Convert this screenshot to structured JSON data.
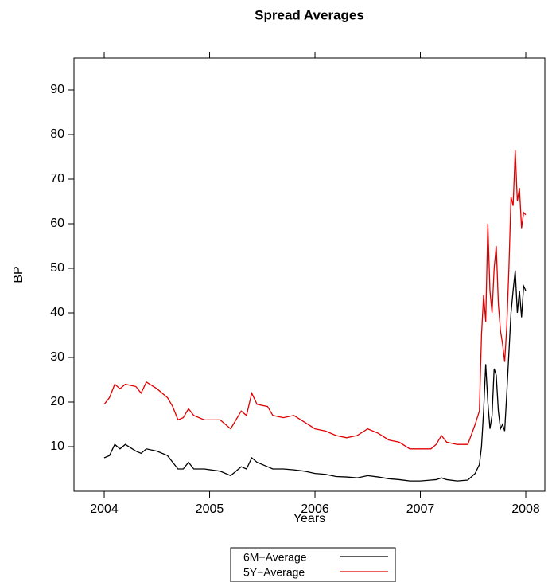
{
  "chart_data": {
    "type": "line",
    "title": "Spread Averages",
    "xlabel": "Years",
    "ylabel": "BP",
    "x": [
      2004.0,
      2004.05,
      2004.1,
      2004.15,
      2004.2,
      2004.3,
      2004.35,
      2004.4,
      2004.5,
      2004.6,
      2004.65,
      2004.7,
      2004.75,
      2004.8,
      2004.85,
      2004.95,
      2005.1,
      2005.2,
      2005.3,
      2005.35,
      2005.4,
      2005.45,
      2005.55,
      2005.6,
      2005.7,
      2005.8,
      2005.9,
      2006.0,
      2006.1,
      2006.2,
      2006.3,
      2006.4,
      2006.5,
      2006.6,
      2006.7,
      2006.8,
      2006.9,
      2007.0,
      2007.1,
      2007.15,
      2007.2,
      2007.25,
      2007.35,
      2007.45,
      2007.52,
      2007.56,
      2007.58,
      2007.6,
      2007.62,
      2007.64,
      2007.66,
      2007.68,
      2007.7,
      2007.72,
      2007.74,
      2007.76,
      2007.78,
      2007.8,
      2007.82,
      2007.84,
      2007.86,
      2007.88,
      2007.9,
      2007.92,
      2007.94,
      2007.96,
      2007.98,
      2008.0
    ],
    "series": [
      {
        "name": "6M−Average",
        "color": "#000000",
        "values": [
          7.5,
          8,
          10.5,
          9.5,
          10.5,
          9,
          8.5,
          9.5,
          9,
          8,
          6.5,
          5,
          5,
          6.5,
          5,
          5,
          4.5,
          3.5,
          5.5,
          5,
          7.5,
          6.5,
          5.5,
          5,
          5,
          4.8,
          4.5,
          4,
          3.8,
          3.3,
          3.2,
          3,
          3.5,
          3.2,
          2.8,
          2.6,
          2.3,
          2.3,
          2.5,
          2.6,
          3,
          2.6,
          2.3,
          2.5,
          4,
          6,
          10,
          18,
          28.5,
          20,
          14,
          17,
          27.5,
          26,
          18,
          14,
          15,
          13.5,
          22,
          31,
          40,
          45,
          49.5,
          40,
          45,
          39,
          46,
          45
        ]
      },
      {
        "name": "5Y−Average",
        "color": "#e00000",
        "values": [
          19.5,
          21,
          24,
          23,
          24,
          23.5,
          22,
          24.5,
          23,
          21,
          19,
          16,
          16.5,
          18.5,
          17,
          16,
          16,
          14,
          18,
          17,
          22,
          19.5,
          19,
          17,
          16.5,
          17,
          15.5,
          14,
          13.5,
          12.5,
          12,
          12.5,
          14,
          13,
          11.5,
          11,
          9.5,
          9.5,
          9.5,
          10.5,
          12.5,
          11,
          10.5,
          10.5,
          15,
          18,
          35,
          44,
          38,
          60,
          45,
          40,
          50,
          55,
          42,
          36,
          33,
          29,
          37,
          50,
          66,
          64,
          76.5,
          65,
          68,
          59,
          62.5,
          62
        ]
      }
    ],
    "xlim": [
      2003.713,
      2008.181
    ],
    "ylim": [
      0,
      97.14
    ],
    "xticks": [
      2004,
      2005,
      2006,
      2007,
      2008
    ],
    "yticks": [
      10,
      20,
      30,
      40,
      50,
      60,
      70,
      80,
      90
    ]
  }
}
